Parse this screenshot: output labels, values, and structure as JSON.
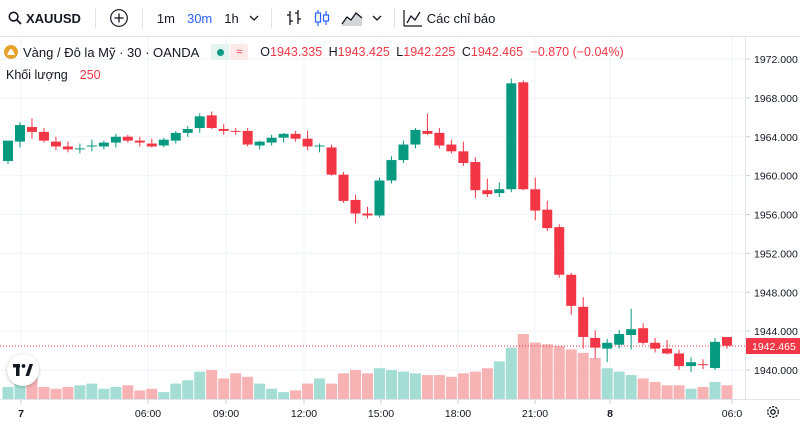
{
  "toolbar": {
    "symbol": "XAUUSD",
    "intervals": [
      "1m",
      "30m",
      "1h"
    ],
    "active_interval": "30m",
    "compare_label": "Các chỉ báo",
    "icons": [
      "search-icon",
      "plus-circle-icon",
      "chevron-down-icon",
      "bar-style-icon",
      "candle-style-icon",
      "area-style-icon",
      "indicators-icon"
    ]
  },
  "legend": {
    "title": "Vàng / Đô la Mỹ · 30 · OANDA",
    "o_label": "O",
    "o": "1943.335",
    "h_label": "H",
    "h": "1943.425",
    "l_label": "L",
    "l": "1942.225",
    "c_label": "C",
    "c": "1942.465",
    "change": "−0.870 (−0.04%)",
    "volume_label": "Khối lượng",
    "volume": "250"
  },
  "colors": {
    "up": "#089981",
    "down": "#f23645",
    "vol_up": "#a3ddd4",
    "vol_down": "#f7b2b3",
    "accent": "#2962ff"
  },
  "chart_data": {
    "type": "candlestick",
    "symbol": "XAUUSD",
    "price_ticks": [
      "1972.000",
      "1968.000",
      "1964.000",
      "1960.000",
      "1956.000",
      "1952.000",
      "1948.000",
      "1944.000",
      "1940.000"
    ],
    "last_price": "1942.465",
    "time_ticks": [
      "7",
      "06:00",
      "09:00",
      "12:00",
      "15:00",
      "18:00",
      "21:00",
      "8",
      "06:0"
    ],
    "ylim": [
      1937.4,
      1974.6
    ],
    "candles": [
      [
        1961.5,
        1963.6,
        1961.2,
        1963.6
      ],
      [
        1963.5,
        1965.5,
        1962.9,
        1965.2
      ],
      [
        1965.0,
        1965.9,
        1963.8,
        1964.5
      ],
      [
        1964.5,
        1964.9,
        1963.4,
        1963.6
      ],
      [
        1963.5,
        1964.0,
        1962.6,
        1963.0
      ],
      [
        1963.0,
        1963.5,
        1962.4,
        1962.7
      ],
      [
        1962.8,
        1963.3,
        1962.3,
        1962.8
      ],
      [
        1963.0,
        1963.7,
        1962.5,
        1963.1
      ],
      [
        1963.0,
        1963.6,
        1962.7,
        1963.4
      ],
      [
        1963.4,
        1964.3,
        1962.9,
        1964.0
      ],
      [
        1964.0,
        1964.2,
        1963.4,
        1963.6
      ],
      [
        1963.6,
        1964.0,
        1963.0,
        1963.4
      ],
      [
        1963.3,
        1963.8,
        1962.9,
        1963.0
      ],
      [
        1963.1,
        1963.9,
        1962.9,
        1963.7
      ],
      [
        1963.6,
        1964.6,
        1963.3,
        1964.4
      ],
      [
        1964.4,
        1965.1,
        1964.0,
        1964.8
      ],
      [
        1964.9,
        1966.4,
        1964.4,
        1966.1
      ],
      [
        1966.2,
        1966.6,
        1964.8,
        1964.9
      ],
      [
        1964.8,
        1965.3,
        1964.2,
        1964.6
      ],
      [
        1964.6,
        1964.9,
        1964.2,
        1964.5
      ],
      [
        1964.6,
        1964.9,
        1963.0,
        1963.2
      ],
      [
        1963.1,
        1963.6,
        1962.7,
        1963.5
      ],
      [
        1963.4,
        1964.2,
        1963.1,
        1963.9
      ],
      [
        1963.9,
        1964.4,
        1963.4,
        1964.3
      ],
      [
        1964.3,
        1964.6,
        1963.5,
        1963.8
      ],
      [
        1963.8,
        1964.6,
        1962.6,
        1963.0
      ],
      [
        1963.0,
        1963.3,
        1962.4,
        1963.1
      ],
      [
        1962.9,
        1963.2,
        1960.0,
        1960.1
      ],
      [
        1960.1,
        1960.4,
        1957.2,
        1957.4
      ],
      [
        1957.5,
        1958.0,
        1955.1,
        1956.1
      ],
      [
        1956.1,
        1956.8,
        1955.6,
        1955.9
      ],
      [
        1955.9,
        1959.8,
        1955.7,
        1959.5
      ],
      [
        1959.5,
        1962.0,
        1959.2,
        1961.6
      ],
      [
        1961.6,
        1963.6,
        1961.3,
        1963.2
      ],
      [
        1963.2,
        1964.9,
        1962.8,
        1964.7
      ],
      [
        1964.6,
        1966.4,
        1964.2,
        1964.3
      ],
      [
        1964.4,
        1964.9,
        1962.8,
        1963.1
      ],
      [
        1963.2,
        1963.7,
        1962.3,
        1962.5
      ],
      [
        1962.5,
        1963.5,
        1961.0,
        1961.3
      ],
      [
        1961.4,
        1961.9,
        1957.7,
        1958.5
      ],
      [
        1958.5,
        1959.7,
        1957.8,
        1958.1
      ],
      [
        1958.2,
        1959.3,
        1957.8,
        1958.6
      ],
      [
        1958.6,
        1970.0,
        1958.3,
        1969.5
      ],
      [
        1969.6,
        1969.8,
        1958.5,
        1958.6
      ],
      [
        1958.6,
        1959.8,
        1955.4,
        1956.4
      ],
      [
        1956.5,
        1957.4,
        1954.3,
        1954.6
      ],
      [
        1954.7,
        1955.0,
        1949.5,
        1949.8
      ],
      [
        1949.8,
        1950.0,
        1945.7,
        1946.6
      ],
      [
        1946.5,
        1947.5,
        1942.2,
        1943.4
      ],
      [
        1943.3,
        1944.1,
        1941.2,
        1942.3
      ],
      [
        1942.2,
        1943.2,
        1940.8,
        1942.8
      ],
      [
        1942.6,
        1944.1,
        1942.2,
        1943.7
      ],
      [
        1943.6,
        1946.3,
        1942.1,
        1944.2
      ],
      [
        1944.3,
        1944.8,
        1942.6,
        1942.8
      ],
      [
        1942.8,
        1943.3,
        1941.8,
        1942.2
      ],
      [
        1942.2,
        1943.1,
        1941.6,
        1941.7
      ],
      [
        1941.7,
        1942.1,
        1940.0,
        1940.4
      ],
      [
        1940.4,
        1941.3,
        1939.8,
        1940.8
      ],
      [
        1940.6,
        1941.1,
        1940.1,
        1940.5
      ],
      [
        1940.2,
        1943.3,
        1940.0,
        1942.9
      ],
      [
        1943.4,
        1943.4,
        1942.2,
        1942.5
      ]
    ],
    "volumes": [
      7,
      11,
      14,
      7,
      6,
      7,
      8,
      9,
      6,
      7,
      8,
      5,
      6,
      4,
      9,
      11,
      16,
      17,
      12,
      15,
      13,
      9,
      6,
      4,
      5,
      9,
      12,
      9,
      15,
      17,
      15,
      18,
      17,
      16,
      15,
      14,
      14,
      13,
      15,
      16,
      18,
      22,
      30,
      38,
      33,
      32,
      31,
      29,
      27,
      24,
      18,
      16,
      14,
      12,
      10,
      8,
      8,
      6,
      7,
      10,
      8
    ]
  }
}
